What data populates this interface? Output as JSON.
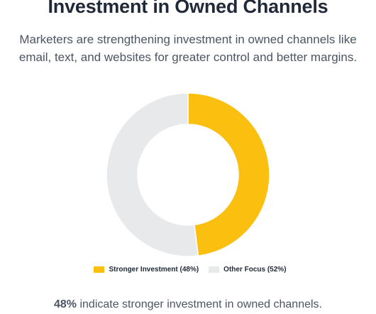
{
  "title": "Investment in Owned Channels",
  "subtitle": "Marketers are strengthening investment in owned channels like email, text, and websites for greater control and better margins.",
  "chart_data": {
    "type": "pie",
    "variant": "donut",
    "slices": [
      {
        "label": "Stronger Investment (48%)",
        "value": 48,
        "color": "#fbbf0f"
      },
      {
        "label": "Other Focus (52%)",
        "value": 52,
        "color": "#e8e9eb"
      }
    ],
    "legend_position": "bottom"
  },
  "footnote": {
    "highlight": "48%",
    "text": " indicate stronger investment in owned channels."
  }
}
